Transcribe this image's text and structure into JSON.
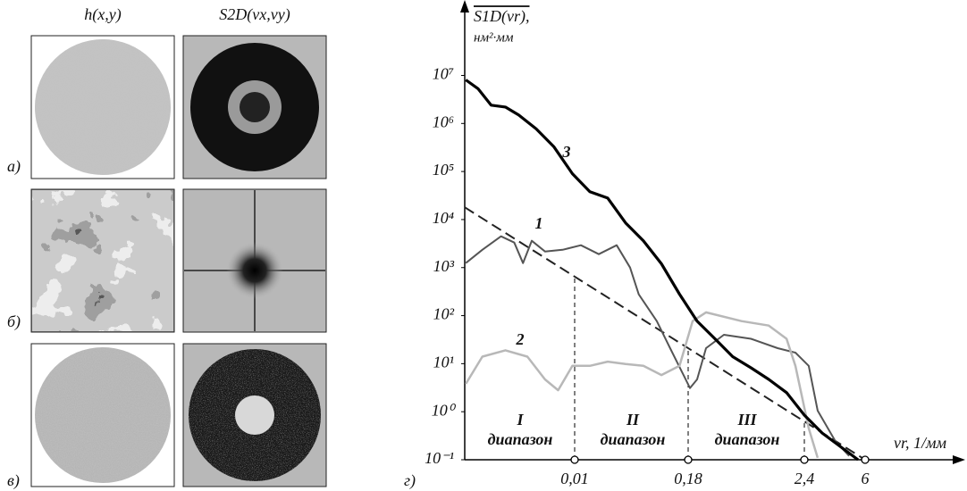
{
  "figure": {
    "column_headers": [
      "h(x,y)",
      "S2D(νx,νy)"
    ],
    "row_labels": [
      "а)",
      "б)",
      "в)"
    ]
  },
  "chart_data": {
    "type": "line",
    "panel_label": "г)",
    "y_label": "S1D(νr),",
    "y_unit": "нм²·мм",
    "x_label": "νr, 1/мм",
    "log_y": true,
    "xlim": [
      0,
      6
    ],
    "ylim": [
      0.1,
      300000000
    ],
    "xticks": [
      {
        "value": 0.01,
        "label": "0,01"
      },
      {
        "value": 0.18,
        "label": "0,18"
      },
      {
        "value": 2.4,
        "label": "2,4"
      },
      6
    ],
    "yticks": [
      {
        "value": 0.1,
        "label": "10⁻¹"
      },
      {
        "value": 1,
        "label": "10⁰"
      },
      {
        "value": 10,
        "label": "10¹"
      },
      {
        "value": 100,
        "label": "10²"
      },
      {
        "value": 1000,
        "label": "10³"
      },
      {
        "value": 10000,
        "label": "10⁴"
      },
      {
        "value": 100000,
        "label": "10⁵"
      },
      {
        "value": 1000000,
        "label": "10⁶"
      },
      {
        "value": 10000000,
        "label": "10⁷"
      }
    ],
    "series": [
      {
        "name": "1",
        "color": "#555555",
        "x": [
          0.0001,
          0.0016,
          0.0033,
          0.0045,
          0.0053,
          0.0061,
          0.0073,
          0.0089,
          0.0194,
          0.0461,
          0.0729,
          0.093,
          0.106,
          0.133,
          0.153,
          0.173,
          0.214,
          0.351,
          0.522,
          0.863,
          1.38,
          1.89,
          2.23,
          2.66,
          3.19,
          4.25,
          5.05
        ],
        "values": [
          1240,
          2350,
          4480,
          3320,
          1240,
          3610,
          2160,
          2350,
          2920,
          1900,
          2920,
          1000,
          277,
          77,
          21,
          5.8,
          3.1,
          4.7,
          21,
          40,
          33,
          21,
          17,
          9,
          1.05,
          0.24,
          0.12
        ]
      },
      {
        "name": "2",
        "color": "#b8b8b8",
        "x": [
          0.0001,
          0.0016,
          0.0037,
          0.0057,
          0.0073,
          0.0085,
          0.0098,
          0.0328,
          0.0595,
          0.0863,
          0.113,
          0.14,
          0.167,
          0.265,
          0.522,
          1.2,
          1.72,
          2.06,
          2.23,
          2.66,
          3.19
        ],
        "values": [
          3.8,
          14,
          19,
          14,
          4.7,
          2.8,
          9,
          9,
          11,
          9.8,
          9,
          5.8,
          9,
          77,
          117,
          77,
          62,
          33,
          9,
          0.45,
          0.11
        ]
      },
      {
        "name": "3",
        "color": "#000000",
        "x": [
          0.0001,
          0.0012,
          0.0024,
          0.0037,
          0.0049,
          0.0065,
          0.0081,
          0.0098,
          0.0328,
          0.0595,
          0.0863,
          0.113,
          0.14,
          0.167,
          0.351,
          0.692,
          1.03,
          1.38,
          1.72,
          2.06,
          2.4,
          3.46,
          4.52,
          5.58
        ],
        "values": [
          8070000,
          5300000,
          2400000,
          2200000,
          1500000,
          770000,
          330000,
          90000,
          38000,
          28000,
          8500,
          3600,
          1200,
          280,
          77,
          33,
          14,
          8.2,
          4.7,
          2.5,
          0.85,
          0.36,
          0.19,
          0.1
        ]
      }
    ],
    "trend_line": {
      "x": [
        0,
        6
      ],
      "values": [
        18000,
        0.1
      ],
      "color": "#222222"
    },
    "ranges": [
      {
        "numeral": "I",
        "label": "диапазон"
      },
      {
        "numeral": "II",
        "label": "диапазон"
      },
      {
        "numeral": "III",
        "label": "диапазон"
      }
    ]
  }
}
